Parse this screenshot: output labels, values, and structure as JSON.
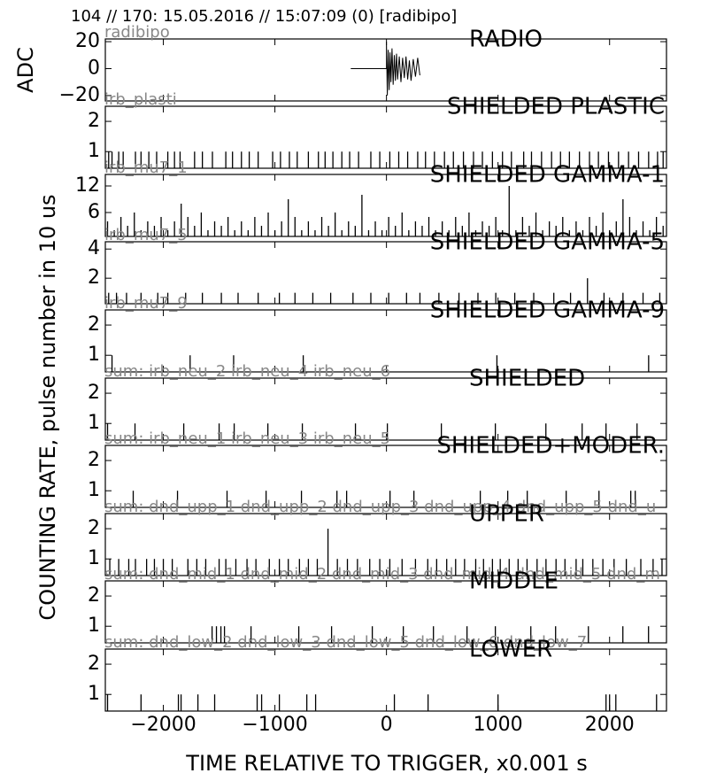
{
  "chart_data": {
    "title": "104 // 170:   15.05.2016 // 15:07:09 (0)  [radibipo]",
    "xlabel": "TIME RELATIVE TO TRIGGER,   x0.001 s",
    "ylabel": "COUNTING RATE,   pulse number in 10 us",
    "xlim": [
      -2520,
      2510
    ],
    "xticks": [
      {
        "value": -2000,
        "label": "−2000"
      },
      {
        "value": -1000,
        "label": "−1000"
      },
      0,
      1000,
      2000
    ],
    "panels": [
      {
        "type": "line",
        "title": "RADIO",
        "label": "radibipo",
        "ylabel": "ADC",
        "color": "#000000",
        "ylim": [
          -24,
          22
        ],
        "yticks": [
          20,
          0,
          {
            "value": -20,
            "label": "−20"
          }
        ],
        "x": [
          -320,
          -100,
          0,
          0,
          8,
          16,
          24,
          32,
          40,
          50,
          60,
          70,
          80,
          90,
          100,
          115,
          130,
          145,
          160,
          175,
          190,
          205,
          220,
          240,
          260,
          280,
          300
        ],
        "values": [
          0,
          0,
          0,
          20,
          -20,
          14,
          -16,
          12,
          -10,
          15,
          -12,
          10,
          -9,
          11,
          -8,
          9,
          -10,
          8,
          -7,
          9,
          -8,
          6,
          -9,
          7,
          -6,
          8,
          -5
        ]
      },
      {
        "type": "spike",
        "title": "SHIELDED PLASTIC",
        "label": "irb_plasti",
        "color": "#000000",
        "ylim": [
          0.45,
          2.5
        ],
        "yticks": [
          2,
          1
        ],
        "x": [
          -2490,
          -2460,
          -2400,
          -2360,
          -2250,
          -2200,
          -2130,
          -2060,
          -1960,
          -1900,
          -1850,
          -1720,
          -1650,
          -1560,
          -1440,
          -1380,
          -1300,
          -1230,
          -1150,
          -1020,
          -950,
          -870,
          -800,
          -700,
          -610,
          -550,
          -480,
          -400,
          -330,
          -250,
          -140,
          -60,
          30,
          110,
          190,
          280,
          350,
          430,
          520,
          600,
          690,
          780,
          860,
          950,
          1040,
          1120,
          1230,
          1300,
          1390,
          1480,
          1560,
          1640,
          1730,
          1820,
          1900,
          1990,
          2080,
          2170,
          2260,
          2350,
          2430,
          2480
        ],
        "values": [
          1,
          1,
          1,
          1,
          1,
          1,
          1,
          1,
          1,
          1,
          1,
          1,
          1,
          1,
          1,
          1,
          1,
          1,
          1,
          1,
          1,
          1,
          1,
          1,
          1,
          1,
          1,
          1,
          1,
          1,
          1,
          1,
          1,
          1,
          1,
          1,
          1,
          1,
          1,
          1,
          1,
          1,
          1,
          1,
          1,
          1,
          1,
          1,
          1,
          1,
          1,
          1,
          1,
          1,
          1,
          1,
          1,
          1,
          1,
          1,
          1,
          1
        ]
      },
      {
        "type": "spike",
        "title": "SHIELDED GAMMA-1",
        "label": "irb_mu7_1",
        "color": "#000000",
        "ylim": [
          0.6,
          14.6
        ],
        "yticks": [
          12,
          6
        ],
        "x": [
          -2500,
          -2440,
          -2380,
          -2320,
          -2260,
          -2200,
          -2140,
          -2080,
          -2020,
          -1960,
          -1900,
          -1840,
          -1780,
          -1720,
          -1660,
          -1600,
          -1540,
          -1480,
          -1420,
          -1360,
          -1300,
          -1240,
          -1180,
          -1120,
          -1060,
          -1000,
          -940,
          -880,
          -820,
          -760,
          -700,
          -640,
          -580,
          -520,
          -460,
          -400,
          -340,
          -280,
          -220,
          -160,
          -100,
          -40,
          20,
          80,
          140,
          200,
          260,
          320,
          380,
          440,
          500,
          560,
          620,
          680,
          740,
          800,
          860,
          920,
          980,
          1040,
          1100,
          1160,
          1220,
          1280,
          1340,
          1400,
          1460,
          1520,
          1580,
          1640,
          1700,
          1760,
          1820,
          1880,
          1940,
          2000,
          2060,
          2120,
          2180,
          2240,
          2300,
          2360,
          2420,
          2480
        ],
        "values": [
          4,
          2,
          5,
          3,
          6,
          2,
          4,
          3,
          5,
          2,
          4,
          8,
          5,
          3,
          6,
          2,
          4,
          3,
          5,
          2,
          4,
          2,
          5,
          3,
          6,
          2,
          4,
          9,
          5,
          2,
          4,
          2,
          5,
          3,
          6,
          2,
          4,
          3,
          10,
          2,
          4,
          2,
          5,
          3,
          6,
          2,
          4,
          3,
          5,
          2,
          4,
          2,
          5,
          3,
          6,
          2,
          4,
          3,
          5,
          2,
          12,
          2,
          5,
          3,
          6,
          2,
          4,
          3,
          5,
          2,
          4,
          2,
          5,
          3,
          6,
          2,
          4,
          9,
          5,
          2,
          4,
          2,
          5,
          3
        ]
      },
      {
        "type": "spike",
        "title": "SHIELDED GAMMA-5",
        "label": "irb_mu7_5",
        "color": "#000000",
        "ylim": [
          0.25,
          4.5
        ],
        "yticks": [
          4,
          2
        ],
        "x": [
          -2490,
          -2420,
          -2330,
          -2200,
          -2050,
          -1960,
          -1800,
          -1650,
          -1480,
          -1330,
          -1150,
          -960,
          -820,
          -660,
          -500,
          -300,
          -140,
          20,
          180,
          300,
          470,
          650,
          820,
          980,
          1150,
          1320,
          1500,
          1650,
          1802,
          1950,
          2120,
          2300,
          2450
        ],
        "values": [
          1,
          1,
          1,
          1,
          1,
          1,
          1,
          1,
          1,
          1,
          1,
          1,
          1,
          1,
          1,
          1,
          1,
          1,
          1,
          1,
          1,
          1,
          1,
          1,
          1,
          1,
          1,
          1,
          2,
          1,
          1,
          1,
          1
        ]
      },
      {
        "type": "spike",
        "title": "SHIELDED GAMMA-9",
        "label": "irb_mu7_9",
        "color": "#000000",
        "ylim": [
          0.45,
          2.5
        ],
        "yticks": [
          2,
          1
        ],
        "x": [
          -2460,
          -1760,
          -1370,
          -746,
          990,
          2350
        ],
        "values": [
          1,
          1,
          1,
          1,
          1,
          1
        ]
      },
      {
        "type": "spike",
        "title": "SHIELDED",
        "label": "sum: irb_neu_2 irb_neu_4 irb_neu_6",
        "color": "#000000",
        "ylim": [
          0.45,
          2.5
        ],
        "yticks": [
          2,
          1
        ],
        "x": [
          -2500,
          -2254,
          -1817,
          -1500,
          -1365,
          -1063,
          -754,
          -278,
          8,
          492,
          976,
          1429,
          1754,
          1968,
          2246
        ],
        "values": [
          1,
          1,
          1,
          1,
          1,
          1,
          1,
          1,
          1,
          1,
          1,
          1,
          1,
          1,
          1
        ]
      },
      {
        "type": "spike",
        "title": "SHIELDED+MODER.",
        "label": "sum: irb_neu_1 irb_neu_3 irb_neu_5",
        "color": "#000000",
        "ylim": [
          0.45,
          2.5
        ],
        "yticks": [
          2,
          1
        ],
        "x": [
          -2270,
          -1873,
          -1429,
          -1079,
          -762,
          -444,
          -357,
          32,
          246,
          841,
          1087,
          1262,
          1611,
          1905,
          2190,
          2230
        ],
        "values": [
          1,
          1,
          1,
          1,
          1,
          1,
          1,
          1,
          1,
          1,
          1,
          1,
          1,
          1,
          1,
          1
        ]
      },
      {
        "type": "spike",
        "title": "UPPER",
        "label": "sum: dnd_upp_1 dnd_upp_2 dnd_upp_3 dnd_upp_4 dnd_upp_5 dnd_u",
        "color": "#000000",
        "ylim": [
          0.45,
          2.5
        ],
        "yticks": [
          2,
          1
        ],
        "x": [
          -2480,
          -2400,
          -2310,
          -2250,
          -2150,
          -2080,
          -2000,
          -1920,
          -1780,
          -1700,
          -1620,
          -1500,
          -1440,
          -1350,
          -1250,
          -1170,
          -1050,
          -960,
          -880,
          -780,
          -700,
          -620,
          -524,
          -440,
          -350,
          -260,
          -150,
          -60,
          30,
          140,
          260,
          370,
          450,
          540,
          620,
          700,
          800,
          870,
          950,
          1020,
          1100,
          1180,
          1260,
          1350,
          1430,
          1520,
          1600,
          1700,
          1760,
          1850,
          1940,
          2040,
          2150,
          2280,
          2390,
          2470
        ],
        "values": [
          1,
          1,
          1,
          1,
          1,
          1,
          1,
          1,
          1,
          1,
          1,
          1,
          1,
          1,
          1,
          1,
          1,
          1,
          1,
          1,
          1,
          1,
          2,
          1,
          1,
          1,
          1,
          1,
          1,
          1,
          1,
          1,
          1,
          1,
          1,
          1,
          1,
          1,
          1,
          1,
          1,
          1,
          1,
          1,
          1,
          1,
          1,
          1,
          1,
          1,
          1,
          1,
          1,
          1,
          1,
          1
        ]
      },
      {
        "type": "spike",
        "title": "MIDDLE",
        "label": "sum: dnd_mid_1 dnd_mid_2 dnd_mid_3 dnd_mid_4 dnd_mid_5 dnd_m",
        "color": "#000000",
        "ylim": [
          0.45,
          2.5
        ],
        "yticks": [
          2,
          1
        ],
        "x": [
          -1563,
          -1524,
          -1484,
          -1452,
          -1214,
          -786,
          -492,
          -127,
          151,
          421,
          722,
          976,
          1294,
          1516,
          1810,
          2119,
          2349
        ],
        "values": [
          1,
          1,
          1,
          1,
          1,
          1,
          1,
          1,
          1,
          1,
          1,
          1,
          1,
          1,
          1,
          1,
          1
        ]
      },
      {
        "type": "spike",
        "title": "LOWER",
        "label": "sum: dnd_low_2 dnd_low_3 dnd_low_5 dnd_low_6 dnd_low_7",
        "color": "#000000",
        "ylim": [
          0.45,
          2.5
        ],
        "yticks": [
          2,
          1
        ],
        "x": [
          -2500,
          -2200,
          -1865,
          -1841,
          -1690,
          -1540,
          -1159,
          -1119,
          -960,
          -714,
          -635,
          71,
          373,
          1000,
          1968,
          2000,
          2056,
          2421
        ],
        "values": [
          1,
          1,
          1,
          1,
          1,
          1,
          1,
          1,
          1,
          1,
          1,
          1,
          1,
          1,
          1,
          1,
          1,
          1
        ]
      }
    ]
  }
}
